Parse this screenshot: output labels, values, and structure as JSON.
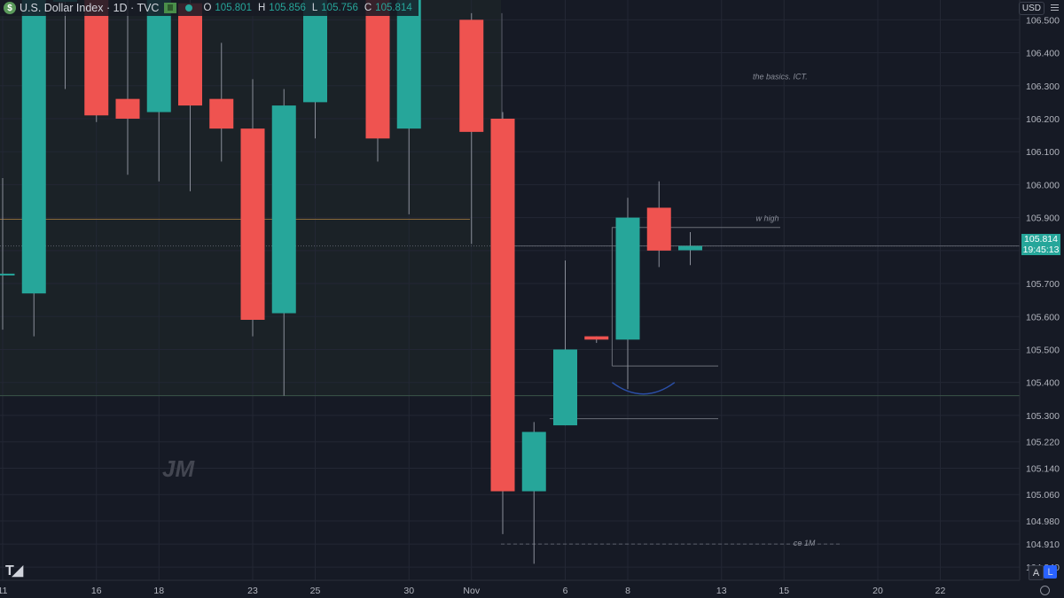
{
  "header": {
    "symbol_logo": "$",
    "title": "U.S. Dollar Index · 1D · TVC",
    "ohlc": [
      {
        "k": "O",
        "v": "105.801"
      },
      {
        "k": "H",
        "v": "105.856"
      },
      {
        "k": "L",
        "v": "105.756"
      },
      {
        "k": "C",
        "v": "105.814"
      }
    ]
  },
  "toolbar": {
    "currency": "USD",
    "btn_a": "A",
    "btn_l": "L"
  },
  "price_tag": {
    "price": "105.814",
    "countdown": "19:45:13"
  },
  "watermark": "JM",
  "colors": {
    "up": "#26a69a",
    "down": "#ef5350",
    "background": "#161a25",
    "grid": "#232734"
  },
  "chart_data": {
    "type": "candlestick",
    "y_axis": {
      "range": [
        104.8,
        106.56
      ],
      "ticks": [
        {
          "label": "106.500",
          "v": 106.5
        },
        {
          "label": "106.400",
          "v": 106.4
        },
        {
          "label": "106.300",
          "v": 106.3
        },
        {
          "label": "106.200",
          "v": 106.2
        },
        {
          "label": "106.100",
          "v": 106.1
        },
        {
          "label": "106.000",
          "v": 106.0
        },
        {
          "label": "105.900",
          "v": 105.9
        },
        {
          "label": "105.800",
          "v": 105.8
        },
        {
          "label": "105.700",
          "v": 105.7
        },
        {
          "label": "105.600",
          "v": 105.6
        },
        {
          "label": "105.500",
          "v": 105.5
        },
        {
          "label": "105.400",
          "v": 105.4
        },
        {
          "label": "105.300",
          "v": 105.3
        },
        {
          "label": "105.220",
          "v": 105.22
        },
        {
          "label": "105.140",
          "v": 105.14
        },
        {
          "label": "105.060",
          "v": 105.06
        },
        {
          "label": "104.980",
          "v": 104.98
        },
        {
          "label": "104.910",
          "v": 104.91
        },
        {
          "label": "104.840",
          "v": 104.84
        }
      ]
    },
    "x_axis": {
      "ticks": [
        {
          "label": "11",
          "slot": 0
        },
        {
          "label": "16",
          "slot": 3
        },
        {
          "label": "18",
          "slot": 5
        },
        {
          "label": "23",
          "slot": 8
        },
        {
          "label": "25",
          "slot": 10
        },
        {
          "label": "30",
          "slot": 13
        },
        {
          "label": "Nov",
          "slot": 15
        },
        {
          "label": "6",
          "slot": 18
        },
        {
          "label": "8",
          "slot": 20
        },
        {
          "label": "13",
          "slot": 23
        },
        {
          "label": "15",
          "slot": 25
        },
        {
          "label": "20",
          "slot": 28
        },
        {
          "label": "22",
          "slot": 30
        }
      ]
    },
    "candles": [
      {
        "slot": 0,
        "o": 105.73,
        "h": 106.02,
        "l": 105.56,
        "c": 105.73
      },
      {
        "slot": 1,
        "o": 105.67,
        "h": 106.6,
        "l": 105.54,
        "c": 106.56
      },
      {
        "slot": 2,
        "o": 106.56,
        "h": 106.6,
        "l": 106.29,
        "c": 106.56
      },
      {
        "slot": 3,
        "o": 106.56,
        "h": 106.6,
        "l": 106.19,
        "c": 106.21
      },
      {
        "slot": 4,
        "o": 106.26,
        "h": 106.56,
        "l": 106.03,
        "c": 106.2
      },
      {
        "slot": 5,
        "o": 106.22,
        "h": 106.56,
        "l": 106.01,
        "c": 106.56
      },
      {
        "slot": 6,
        "o": 106.55,
        "h": 106.58,
        "l": 105.98,
        "c": 106.24
      },
      {
        "slot": 7,
        "o": 106.26,
        "h": 106.43,
        "l": 106.07,
        "c": 106.17
      },
      {
        "slot": 8,
        "o": 106.17,
        "h": 106.32,
        "l": 105.54,
        "c": 105.59
      },
      {
        "slot": 9,
        "o": 105.61,
        "h": 106.29,
        "l": 105.36,
        "c": 106.24
      },
      {
        "slot": 10,
        "o": 106.25,
        "h": 106.56,
        "l": 106.14,
        "c": 106.56
      },
      {
        "slot": 12,
        "o": 106.56,
        "h": 106.6,
        "l": 106.07,
        "c": 106.14
      },
      {
        "slot": 13,
        "o": 106.17,
        "h": 106.6,
        "l": 105.91,
        "c": 106.56
      },
      {
        "slot": 15,
        "o": 106.5,
        "h": 106.52,
        "l": 105.82,
        "c": 106.16
      },
      {
        "slot": 16,
        "o": 106.2,
        "h": 106.22,
        "l": 104.94,
        "c": 105.07
      },
      {
        "slot": 17,
        "o": 105.07,
        "h": 105.28,
        "l": 104.85,
        "c": 105.25
      },
      {
        "slot": 18,
        "o": 105.27,
        "h": 105.77,
        "l": 105.27,
        "c": 105.5
      },
      {
        "slot": 19,
        "o": 105.54,
        "h": 105.54,
        "l": 105.52,
        "c": 105.53
      },
      {
        "slot": 20,
        "o": 105.53,
        "h": 105.96,
        "l": 105.38,
        "c": 105.9
      },
      {
        "slot": 21,
        "o": 105.93,
        "h": 106.01,
        "l": 105.75,
        "c": 105.8
      },
      {
        "slot": 22,
        "o": 105.801,
        "h": 105.856,
        "l": 105.756,
        "c": 105.814
      }
    ],
    "current_price": 105.814,
    "annotations": [
      {
        "text": "the basics. ICT.",
        "slot": 24.0,
        "price": 106.33
      },
      {
        "text": "w high",
        "slot": 24.1,
        "price": 105.9
      },
      {
        "text": "ce 1M",
        "slot": 25.3,
        "price": 104.915
      }
    ],
    "grid": true
  }
}
